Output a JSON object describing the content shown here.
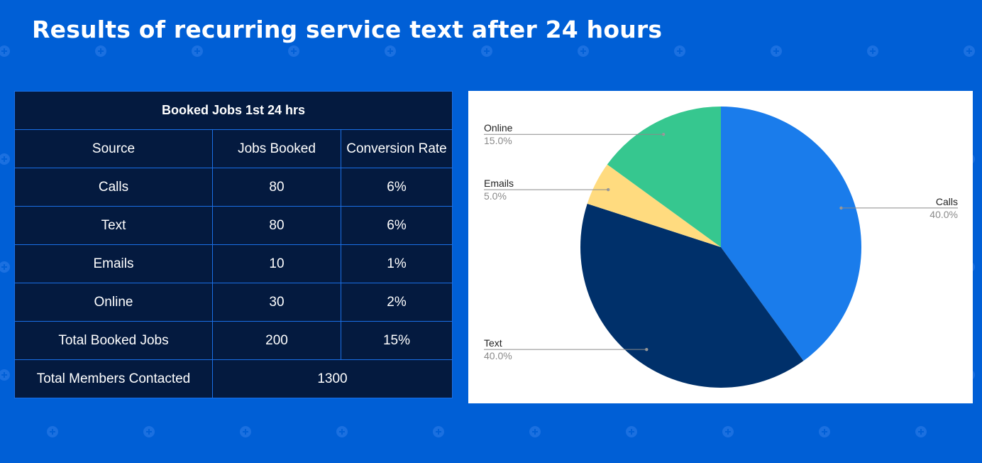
{
  "page": {
    "title": "Results of recurring service text after 24 hours"
  },
  "table": {
    "heading": "Booked Jobs 1st 24 hrs",
    "columns": [
      "Source",
      "Jobs Booked",
      "Conversion Rate"
    ],
    "rows": [
      {
        "source": "Calls",
        "jobs": "80",
        "rate": "6%"
      },
      {
        "source": "Text",
        "jobs": "80",
        "rate": "6%"
      },
      {
        "source": "Emails",
        "jobs": "10",
        "rate": "1%"
      },
      {
        "source": "Online",
        "jobs": "30",
        "rate": "2%"
      }
    ],
    "total_row": {
      "label": "Total Booked Jobs",
      "jobs": "200",
      "rate": "15%"
    },
    "members_row": {
      "label": "Total Members Contacted",
      "value": "1300"
    }
  },
  "colors": {
    "background": "#005fd6",
    "table_bg": "#041a3f",
    "table_border": "#1a6fe6",
    "calls": "#1a7ceb",
    "text": "#00306a",
    "emails": "#ffdb7f",
    "online": "#36c78f"
  },
  "chart_data": {
    "type": "pie",
    "start_angle_deg": 0,
    "direction": "clockwise",
    "slices": [
      {
        "label": "Calls",
        "value": 40.0,
        "pct_label": "40.0%",
        "color": "#1a7ceb"
      },
      {
        "label": "Text",
        "value": 40.0,
        "pct_label": "40.0%",
        "color": "#00306a"
      },
      {
        "label": "Emails",
        "value": 5.0,
        "pct_label": "5.0%",
        "color": "#ffdb7f"
      },
      {
        "label": "Online",
        "value": 15.0,
        "pct_label": "15.0%",
        "color": "#36c78f"
      }
    ],
    "legend": "none",
    "labels": "outside-with-leader-lines"
  }
}
